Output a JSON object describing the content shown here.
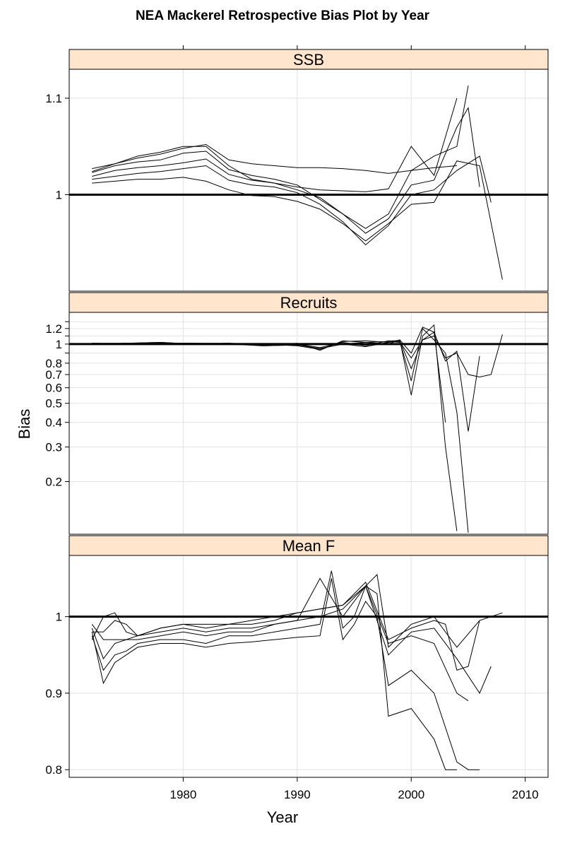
{
  "chart_data": {
    "type": "line",
    "title": "NEA Mackerel Retrospective Bias Plot by Year",
    "xlabel": "Year",
    "ylabel": "Bias",
    "xlim": [
      1970,
      2012
    ],
    "x_ticks": [
      1980,
      1990,
      2000,
      2010
    ],
    "reference_line": 1,
    "grid": true,
    "panels": [
      {
        "name": "SSB",
        "scale": "linear",
        "ylim": [
          0.9,
          1.13
        ],
        "y_ticks": [
          {
            "v": 1,
            "label": "1"
          },
          {
            "v": 1.1,
            "label": "1.1"
          }
        ],
        "y_minor": [],
        "series": [
          {
            "x": [
              1972,
              1974,
              1976,
              1978,
              1980,
              1982,
              1984,
              1986,
              1988,
              1990,
              1992,
              1994,
              1996,
              1998,
              2000,
              2002,
              2004,
              2006,
              2008
            ],
            "y": [
              1.012,
              1.014,
              1.016,
              1.016,
              1.018,
              1.014,
              1.005,
              0.999,
              0.998,
              0.993,
              0.985,
              0.97,
              0.952,
              0.97,
              0.99,
              0.992,
              1.035,
              1.03,
              0.912
            ]
          },
          {
            "x": [
              1972,
              1974,
              1976,
              1978,
              1980,
              1982,
              1984,
              1986,
              1988,
              1990,
              1992,
              1994,
              1996,
              1998,
              2000,
              2002,
              2004,
              2006,
              2007
            ],
            "y": [
              1.016,
              1.019,
              1.022,
              1.024,
              1.027,
              1.03,
              1.015,
              1.01,
              1.008,
              1.002,
              0.99,
              0.972,
              0.948,
              0.968,
              1.0,
              1.005,
              1.025,
              1.04,
              0.992
            ]
          },
          {
            "x": [
              1972,
              1974,
              1976,
              1978,
              1980,
              1982,
              1984,
              1986,
              1988,
              1990,
              1992,
              1994,
              1996,
              1998,
              2000,
              2002,
              2004,
              2005,
              2006
            ],
            "y": [
              1.019,
              1.025,
              1.028,
              1.03,
              1.033,
              1.037,
              1.021,
              1.015,
              1.012,
              1.005,
              0.997,
              0.98,
              0.96,
              0.975,
              1.01,
              1.015,
              1.07,
              1.09,
              1.008
            ]
          },
          {
            "x": [
              1972,
              1974,
              1976,
              1978,
              1980,
              1982,
              1984,
              1986,
              1988,
              1990,
              1992,
              1994,
              1996,
              1998,
              2000,
              2002,
              2004,
              2005
            ],
            "y": [
              1.023,
              1.03,
              1.034,
              1.036,
              1.043,
              1.045,
              1.026,
              1.02,
              1.016,
              1.01,
              0.995,
              0.98,
              0.965,
              0.98,
              1.025,
              1.04,
              1.05,
              1.113
            ]
          },
          {
            "x": [
              1972,
              1974,
              1976,
              1978,
              1980,
              1982,
              1984,
              1986,
              1988,
              1990,
              1992,
              1994,
              1996,
              1998,
              2000,
              2002,
              2004
            ],
            "y": [
              1.027,
              1.032,
              1.038,
              1.042,
              1.048,
              1.052,
              1.036,
              1.032,
              1.03,
              1.028,
              1.028,
              1.027,
              1.025,
              1.022,
              1.025,
              1.028,
              1.03
            ]
          },
          {
            "x": [
              1972,
              1974,
              1976,
              1978,
              1980,
              1982,
              1984,
              1986,
              1988,
              1990,
              1992,
              1994,
              1996,
              1998,
              2000,
              2002,
              2004
            ],
            "y": [
              1.024,
              1.032,
              1.04,
              1.044,
              1.05,
              1.05,
              1.03,
              1.016,
              1.012,
              1.008,
              1.005,
              1.004,
              1.003,
              1.006,
              1.05,
              1.02,
              1.1
            ]
          }
        ]
      },
      {
        "name": "Recruits",
        "scale": "log",
        "ylim": [
          0.108,
          1.45
        ],
        "y_ticks": [
          {
            "v": 0.2,
            "label": "0.2"
          },
          {
            "v": 0.3,
            "label": "0.3"
          },
          {
            "v": 0.4,
            "label": "0.4"
          },
          {
            "v": 0.5,
            "label": "0.5"
          },
          {
            "v": 0.6,
            "label": "0.6"
          },
          {
            "v": 0.7,
            "label": "0.7"
          },
          {
            "v": 0.8,
            "label": "0.8"
          },
          {
            "v": 1,
            "label": "1"
          },
          {
            "v": 1.2,
            "label": "1.2"
          }
        ],
        "y_minor": [
          0.9,
          1.1,
          1.3
        ],
        "series": [
          {
            "x": [
              1972,
              1975,
              1978,
              1981,
              1984,
              1987,
              1990,
              1992,
              1994,
              1996,
              1998,
              1999,
              2000,
              2001,
              2002,
              2003,
              2004,
              2005,
              2006,
              2007,
              2008
            ],
            "y": [
              1.0,
              1.01,
              1.02,
              1.0,
              1.01,
              0.98,
              0.99,
              0.95,
              1.0,
              1.02,
              1.03,
              1.02,
              0.85,
              1.05,
              1.1,
              0.85,
              0.9,
              0.7,
              0.68,
              0.7,
              1.12
            ]
          },
          {
            "x": [
              1972,
              1975,
              1978,
              1981,
              1984,
              1987,
              1990,
              1992,
              1994,
              1996,
              1998,
              1999,
              2000,
              2001,
              2002,
              2003,
              2004,
              2005,
              2006
            ],
            "y": [
              1.01,
              1.0,
              1.01,
              1.01,
              1.0,
              0.99,
              1.0,
              0.96,
              1.02,
              0.98,
              1.04,
              1.04,
              0.75,
              1.05,
              1.15,
              0.82,
              0.92,
              0.36,
              0.87
            ]
          },
          {
            "x": [
              1972,
              1975,
              1978,
              1981,
              1984,
              1987,
              1990,
              1992,
              1994,
              1996,
              1998,
              1999,
              2000,
              2001,
              2002,
              2003,
              2004,
              2005
            ],
            "y": [
              1.0,
              1.01,
              1.0,
              1.0,
              1.01,
              1.0,
              0.98,
              0.94,
              1.03,
              1.04,
              1.02,
              1.03,
              0.65,
              1.2,
              1.05,
              0.9,
              0.45,
              0.11
            ]
          },
          {
            "x": [
              1972,
              1975,
              1978,
              1981,
              1984,
              1987,
              1990,
              1992,
              1994,
              1996,
              1998,
              1999,
              2000,
              2001,
              2002,
              2003,
              2004
            ],
            "y": [
              1.01,
              1.01,
              1.02,
              1.0,
              1.0,
              0.98,
              0.99,
              0.95,
              1.0,
              0.97,
              1.02,
              1.05,
              0.55,
              1.1,
              1.25,
              0.3,
              0.112
            ]
          },
          {
            "x": [
              1972,
              1975,
              1978,
              1981,
              1984,
              1987,
              1990,
              1992,
              1994,
              1996,
              1998,
              1999,
              2000,
              2001,
              2002,
              2003
            ],
            "y": [
              1.0,
              1.0,
              1.01,
              1.01,
              1.01,
              0.99,
              1.01,
              0.93,
              1.04,
              1.02,
              1.0,
              1.05,
              0.9,
              1.22,
              1.15,
              0.4
            ]
          }
        ]
      },
      {
        "name": "Mean F",
        "scale": "linear",
        "ylim": [
          0.79,
          1.08
        ],
        "y_ticks": [
          {
            "v": 0.8,
            "label": "0.8"
          },
          {
            "v": 0.9,
            "label": "0.9"
          },
          {
            "v": 1,
            "label": "1"
          }
        ],
        "y_minor": [],
        "series": [
          {
            "x": [
              1972,
              1973,
              1974,
              1975,
              1976,
              1978,
              1980,
              1982,
              1984,
              1986,
              1988,
              1990,
              1992,
              1993,
              1994,
              1995,
              1996,
              1997,
              1998,
              2000,
              2002,
              2004,
              2005,
              2006
            ],
            "y": [
              0.98,
              0.913,
              0.94,
              0.95,
              0.96,
              0.965,
              0.965,
              0.96,
              0.965,
              0.967,
              0.97,
              0.973,
              0.975,
              1.05,
              0.97,
              0.99,
              1.02,
              1.0,
              0.91,
              0.93,
              0.9,
              0.81,
              0.8,
              0.8
            ]
          },
          {
            "x": [
              1972,
              1973,
              1974,
              1975,
              1976,
              1978,
              1980,
              1982,
              1984,
              1986,
              1988,
              1990,
              1992,
              1993,
              1994,
              1995,
              1996,
              1997,
              1998,
              2000,
              2002,
              2003,
              2004
            ],
            "y": [
              0.975,
              0.93,
              0.95,
              0.955,
              0.965,
              0.97,
              0.97,
              0.965,
              0.975,
              0.975,
              0.98,
              0.985,
              0.99,
              1.06,
              0.985,
              1.0,
              1.04,
              1.03,
              0.87,
              0.88,
              0.84,
              0.8,
              0.8
            ]
          },
          {
            "x": [
              1972,
              1973,
              1974,
              1975,
              1976,
              1978,
              1980,
              1982,
              1984,
              1986,
              1988,
              1990,
              1992,
              1994,
              1996,
              1998,
              2000,
              2002,
              2004,
              2005
            ],
            "y": [
              0.985,
              0.945,
              0.965,
              0.97,
              0.97,
              0.975,
              0.98,
              0.975,
              0.98,
              0.98,
              0.99,
              0.995,
              1.05,
              1.0,
              1.04,
              0.965,
              0.975,
              0.965,
              0.9,
              0.89
            ]
          },
          {
            "x": [
              1972,
              1973,
              1974,
              1975,
              1976,
              1978,
              1980,
              1982,
              1984,
              1986,
              1988,
              1990,
              1992,
              1994,
              1996,
              1998,
              2000,
              2002,
              2004,
              2006,
              2007
            ],
            "y": [
              0.99,
              0.97,
              0.97,
              0.97,
              0.975,
              0.98,
              0.985,
              0.98,
              0.985,
              0.985,
              0.99,
              0.995,
              1.0,
              1.01,
              1.04,
              0.95,
              0.98,
              0.985,
              0.945,
              0.9,
              0.935
            ]
          },
          {
            "x": [
              1972,
              1973,
              1974,
              1975,
              1976,
              1978,
              1980,
              1982,
              1984,
              1986,
              1988,
              1990,
              1992,
              1994,
              1996,
              1997,
              1998,
              2000,
              2002,
              2004,
              2006,
              2008
            ],
            "y": [
              0.98,
              0.98,
              0.995,
              0.99,
              0.975,
              0.985,
              0.99,
              0.985,
              0.99,
              0.99,
              0.995,
              1.005,
              1.01,
              1.015,
              1.04,
              1.055,
              0.96,
              0.99,
              1.0,
              0.96,
              0.995,
              1.005
            ]
          },
          {
            "x": [
              1972,
              1973,
              1974,
              1975,
              1976,
              1978,
              1980,
              1982,
              1984,
              1986,
              1988,
              1990,
              1992,
              1994,
              1996,
              1998,
              2000,
              2002,
              2003,
              2004,
              2005,
              2006
            ],
            "y": [
              0.97,
              1.0,
              1.005,
              0.98,
              0.975,
              0.985,
              0.99,
              0.99,
              0.99,
              0.995,
              1.0,
              1.005,
              1.01,
              1.015,
              1.045,
              0.97,
              0.985,
              0.995,
              0.99,
              0.93,
              0.935,
              0.995
            ]
          }
        ]
      }
    ]
  }
}
